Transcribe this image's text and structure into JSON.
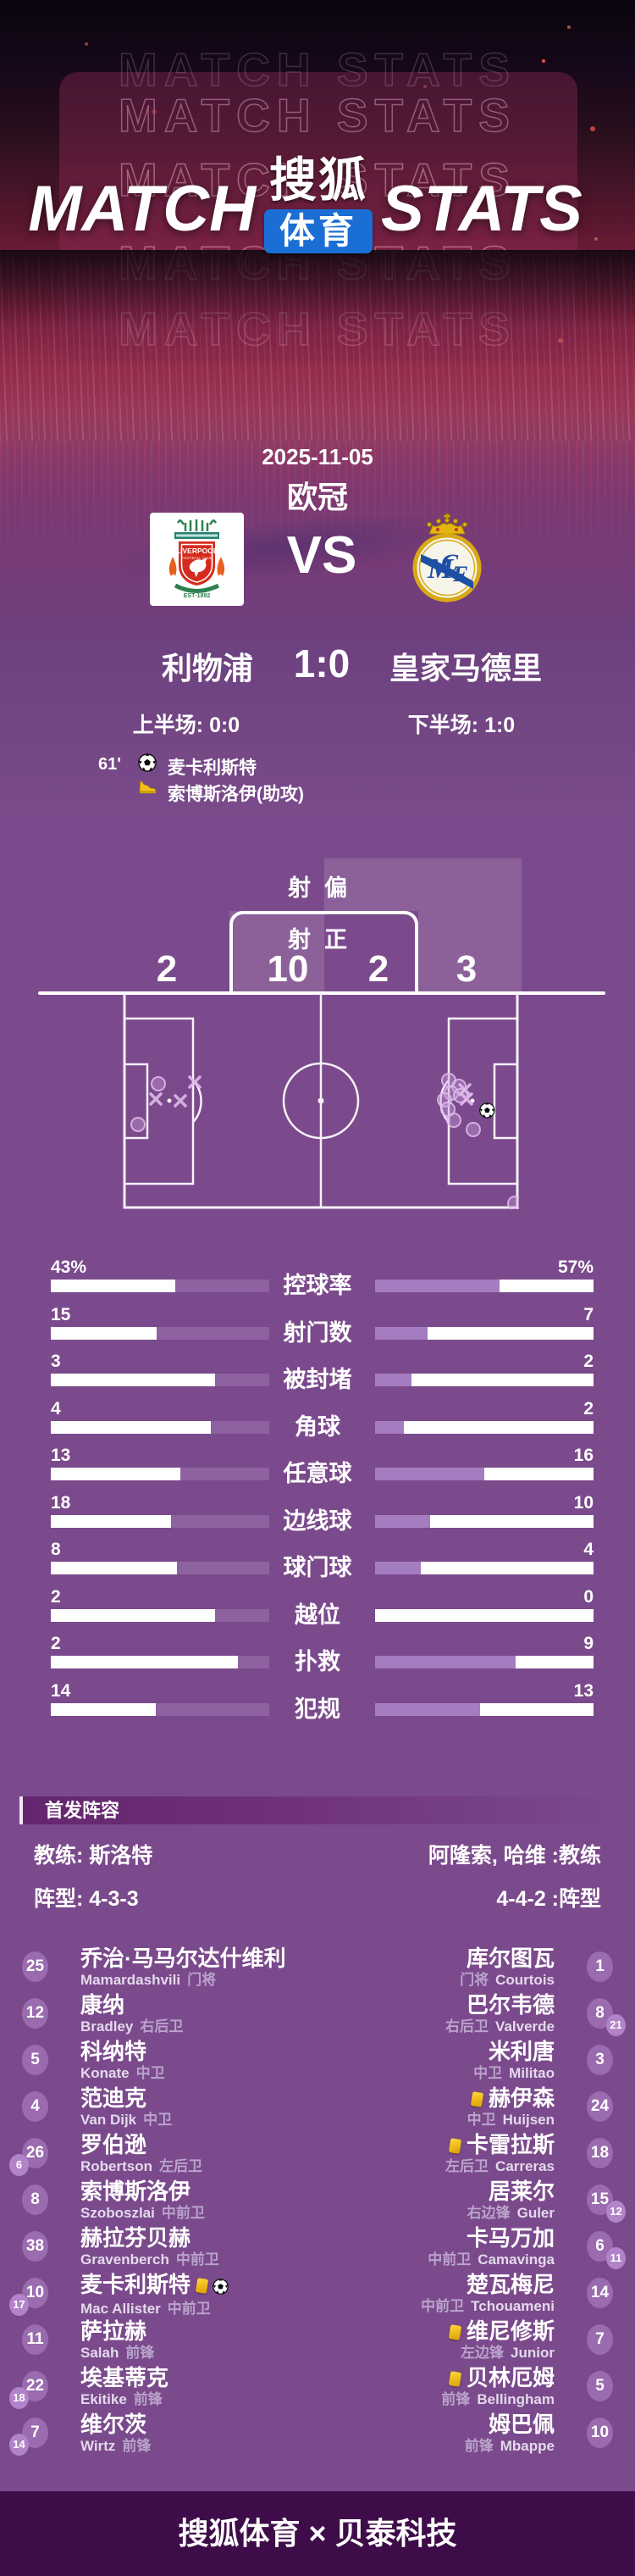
{
  "header": {
    "watermark": "MATCH STATS",
    "title_left": "MATCH",
    "title_right": "STATS",
    "logo_top": "搜狐",
    "logo_bottom": "体育",
    "logo_box_color": "#1a6ed4"
  },
  "match": {
    "date": "2025-11-05",
    "competition": "欧冠",
    "vs": "VS",
    "home_name": "利物浦",
    "away_name": "皇家马德里",
    "score": "1:0",
    "first_half": "上半场: 0:0",
    "second_half": "下半场: 1:0",
    "events": [
      {
        "time": "61'",
        "icon": "goal-icon",
        "player": "麦卡利斯特"
      },
      {
        "time": "",
        "icon": "assist-icon",
        "player": "索博斯洛伊(助攻)"
      }
    ]
  },
  "chart_data": [
    {
      "type": "bar",
      "title": "比赛技术统计",
      "categories": [
        "控球率",
        "射门数",
        "被封堵",
        "角球",
        "任意球",
        "边线球",
        "球门球",
        "越位",
        "扑救",
        "犯规"
      ],
      "series": [
        {
          "name": "利物浦",
          "values": [
            43,
            15,
            3,
            4,
            13,
            18,
            8,
            2,
            2,
            14
          ]
        },
        {
          "name": "皇家马德里",
          "values": [
            57,
            7,
            2,
            2,
            16,
            10,
            4,
            0,
            9,
            13
          ]
        }
      ],
      "units": [
        "%",
        "",
        "",
        "",
        "",
        "",
        "",
        "",
        "",
        ""
      ],
      "bar_scales": [
        100,
        29,
        12,
        15,
        32,
        40,
        19,
        8,
        14,
        27
      ],
      "colors": {
        "home_fill": "#8e61a0",
        "away_fill": "#a67cc0",
        "track": "#ffffff"
      },
      "legend_position": "labels-centered-between-bars",
      "grid": false
    },
    {
      "type": "scatter",
      "title": "射门分布",
      "off_label": "射偏",
      "on_label": "射正",
      "home": {
        "name": "利物浦",
        "on_target": 10,
        "off_target": 2
      },
      "away": {
        "name": "皇家马德里",
        "on_target": 2,
        "off_target": 3
      },
      "pitch_size": [
        468,
        255
      ],
      "markers": {
        "home_on": [
          [
            385,
            103
          ],
          [
            397,
            110
          ],
          [
            388,
            118
          ],
          [
            380,
            126
          ],
          [
            391,
            150
          ],
          [
            414,
            161
          ],
          [
            463,
            248
          ],
          [
            399,
            121
          ],
          [
            384,
            137
          ]
        ],
        "home_off": [
          [
            404,
            114
          ],
          [
            406,
            125
          ]
        ],
        "home_goal": [
          [
            430,
            138
          ]
        ],
        "away_on": [
          [
            42,
            107
          ],
          [
            18,
            155
          ]
        ],
        "away_off": [
          [
            85,
            105
          ],
          [
            39,
            125
          ],
          [
            68,
            127
          ]
        ]
      }
    }
  ],
  "lineup": {
    "section_title": "首发阵容",
    "home": {
      "coach_line": "教练: 斯洛特",
      "formation_line": "阵型: 4-3-3",
      "players": [
        {
          "num": "25",
          "name": "乔治·马马尔达什维利",
          "latin": "Mamardashvili",
          "pos": "门将"
        },
        {
          "num": "12",
          "name": "康纳",
          "latin": "Bradley",
          "pos": "右后卫"
        },
        {
          "num": "5",
          "name": "科纳特",
          "latin": "Konate",
          "pos": "中卫"
        },
        {
          "num": "4",
          "name": "范迪克",
          "latin": "Van Dijk",
          "pos": "中卫"
        },
        {
          "num": "26",
          "sub": "6",
          "name": "罗伯逊",
          "latin": "Robertson",
          "pos": "左后卫"
        },
        {
          "num": "8",
          "name": "索博斯洛伊",
          "latin": "Szoboszlai",
          "pos": "中前卫"
        },
        {
          "num": "38",
          "name": "赫拉芬贝赫",
          "latin": "Gravenberch",
          "pos": "中前卫"
        },
        {
          "num": "10",
          "sub": "17",
          "name": "麦卡利斯特",
          "latin": "Mac Allister",
          "pos": "中前卫",
          "yellow": true,
          "goal": true
        },
        {
          "num": "11",
          "name": "萨拉赫",
          "latin": "Salah",
          "pos": "前锋"
        },
        {
          "num": "22",
          "sub": "18",
          "name": "埃基蒂克",
          "latin": "Ekitike",
          "pos": "前锋"
        },
        {
          "num": "7",
          "sub": "14",
          "name": "维尔茨",
          "latin": "Wirtz",
          "pos": "前锋"
        }
      ]
    },
    "away": {
      "coach_line": "阿隆索, 哈维 :教练",
      "formation_line": "4-4-2 :阵型",
      "players": [
        {
          "num": "1",
          "name": "库尔图瓦",
          "latin": "Courtois",
          "pos": "门将"
        },
        {
          "num": "8",
          "sub": "21",
          "name": "巴尔韦德",
          "latin": "Valverde",
          "pos": "右后卫"
        },
        {
          "num": "3",
          "name": "米利唐",
          "latin": "Militao",
          "pos": "中卫"
        },
        {
          "num": "24",
          "name": "赫伊森",
          "latin": "Huijsen",
          "pos": "中卫",
          "yellow": true
        },
        {
          "num": "18",
          "name": "卡雷拉斯",
          "latin": "Carreras",
          "pos": "左后卫",
          "yellow": true
        },
        {
          "num": "15",
          "sub": "12",
          "name": "居莱尔",
          "latin": "Guler",
          "pos": "右边锋"
        },
        {
          "num": "6",
          "sub": "11",
          "name": "卡马万加",
          "latin": "Camavinga",
          "pos": "中前卫"
        },
        {
          "num": "14",
          "name": "楚瓦梅尼",
          "latin": "Tchouameni",
          "pos": "中前卫"
        },
        {
          "num": "7",
          "name": "维尼修斯",
          "latin": "Junior",
          "pos": "左边锋",
          "yellow": true
        },
        {
          "num": "5",
          "name": "贝林厄姆",
          "latin": "Bellingham",
          "pos": "前锋",
          "yellow": true
        },
        {
          "num": "10",
          "name": "姆巴佩",
          "latin": "Mbappe",
          "pos": "前锋"
        }
      ]
    }
  },
  "footer": {
    "text": "搜狐体育 × 贝泰科技"
  }
}
